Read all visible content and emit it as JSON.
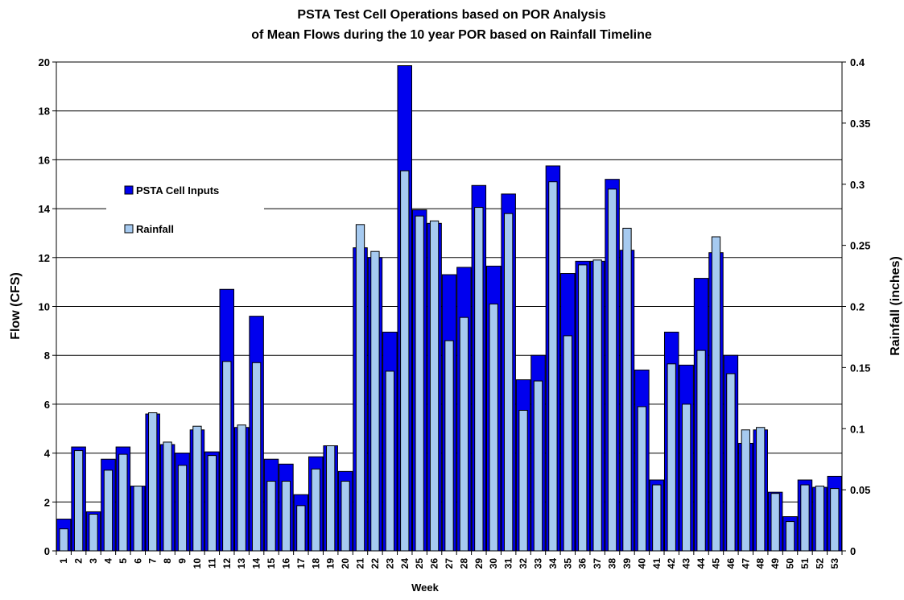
{
  "chart_data": {
    "type": "bar",
    "title_line1": "PSTA Test Cell Operations based on POR Analysis",
    "title_line2": "of Mean Flows during the 10 year POR based on Rainfall Timeline",
    "xlabel": "Week",
    "ylabel": "Flow (CFS)",
    "y2label": "Rainfall (inches)",
    "ylim": [
      0,
      20
    ],
    "y2lim": [
      0,
      0.4
    ],
    "yticks": [
      "0",
      "2",
      "4",
      "6",
      "8",
      "10",
      "12",
      "14",
      "16",
      "18",
      "20"
    ],
    "y2ticks": [
      "0",
      "0.05",
      "0.1",
      "0.15",
      "0.2",
      "0.25",
      "0.3",
      "0.35",
      "0.4"
    ],
    "grid": true,
    "legend_position": "upper-left",
    "categories": [
      "1",
      "2",
      "3",
      "4",
      "5",
      "6",
      "7",
      "8",
      "9",
      "10",
      "11",
      "12",
      "13",
      "14",
      "15",
      "16",
      "17",
      "18",
      "19",
      "20",
      "21",
      "22",
      "23",
      "24",
      "25",
      "26",
      "27",
      "28",
      "29",
      "30",
      "31",
      "32",
      "33",
      "34",
      "35",
      "36",
      "37",
      "38",
      "39",
      "40",
      "41",
      "42",
      "43",
      "44",
      "45",
      "46",
      "47",
      "48",
      "49",
      "50",
      "51",
      "52",
      "53"
    ],
    "series": [
      {
        "name": "PSTA Cell Inputs",
        "axis": "left",
        "color": "#0000EE",
        "values": [
          1.3,
          4.25,
          1.6,
          3.75,
          4.25,
          2.65,
          5.6,
          4.35,
          4.0,
          4.95,
          4.05,
          10.7,
          5.05,
          9.6,
          3.75,
          3.55,
          2.3,
          3.85,
          4.3,
          3.25,
          12.4,
          12.0,
          8.95,
          19.85,
          13.95,
          13.4,
          11.3,
          11.6,
          14.95,
          11.65,
          14.6,
          7.0,
          8.0,
          15.75,
          11.35,
          11.85,
          11.85,
          15.2,
          12.3,
          7.4,
          2.9,
          8.95,
          7.6,
          11.15,
          12.2,
          8.0,
          4.4,
          4.95,
          2.4,
          1.4,
          2.9,
          2.6,
          3.05
        ]
      },
      {
        "name": "Rainfall",
        "axis": "right",
        "color": "#A6CAF0",
        "values": [
          0.018,
          0.082,
          0.03,
          0.066,
          0.079,
          0.053,
          0.113,
          0.089,
          0.07,
          0.102,
          0.078,
          0.155,
          0.103,
          0.154,
          0.057,
          0.057,
          0.037,
          0.067,
          0.086,
          0.057,
          0.267,
          0.245,
          0.147,
          0.311,
          0.274,
          0.27,
          0.172,
          0.191,
          0.281,
          0.202,
          0.276,
          0.115,
          0.139,
          0.302,
          0.176,
          0.234,
          0.238,
          0.296,
          0.264,
          0.118,
          0.054,
          0.153,
          0.12,
          0.164,
          0.257,
          0.145,
          0.099,
          0.101,
          0.047,
          0.024,
          0.054,
          0.053,
          0.051
        ]
      }
    ]
  }
}
